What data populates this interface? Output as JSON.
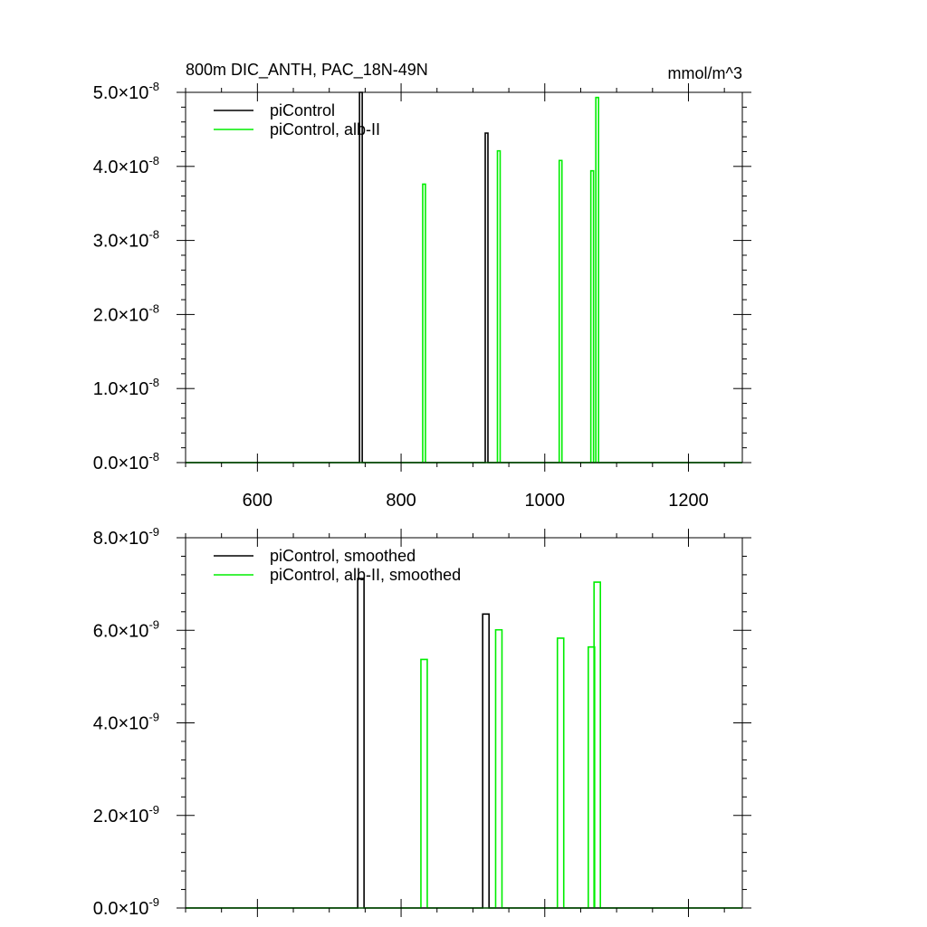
{
  "title": "800m DIC_ANTH, PAC_18N-49N",
  "units": "mmol/m^3",
  "chart_data": [
    {
      "type": "line",
      "title": "800m DIC_ANTH, PAC_18N-49N",
      "units_label": "mmol/m^3",
      "xlim": [
        500,
        1275
      ],
      "ylim": [
        0,
        5e-08
      ],
      "xticks": [
        600,
        800,
        1000,
        1200
      ],
      "xtick_labels": [
        "600",
        "800",
        "1000",
        "1200"
      ],
      "show_xtick_labels": true,
      "yticks": [
        0,
        1e-08,
        2e-08,
        3e-08,
        4e-08,
        5e-08
      ],
      "ytick_mantissas": [
        "0.0",
        "1.0",
        "2.0",
        "3.0",
        "4.0",
        "5.0"
      ],
      "ytick_exponent": "-8",
      "grid": false,
      "legend_position": "top-left",
      "series": [
        {
          "name": "piControl",
          "color": "#000000",
          "spikes": [
            [
              744,
              5e-08
            ],
            [
              919,
              4.45e-08
            ]
          ]
        },
        {
          "name": "piControl, alb-II",
          "color": "#00ee00",
          "spikes": [
            [
              832,
              3.76e-08
            ],
            [
              936,
              4.21e-08
            ],
            [
              1022,
              4.08e-08
            ],
            [
              1066,
              3.94e-08
            ],
            [
              1073,
              4.93e-08
            ]
          ]
        }
      ]
    },
    {
      "type": "line",
      "title": "",
      "xlim": [
        500,
        1275
      ],
      "ylim": [
        0,
        8e-09
      ],
      "xticks": [
        600,
        800,
        1000,
        1200
      ],
      "xtick_labels": [],
      "show_xtick_labels": false,
      "yticks": [
        0,
        2e-09,
        4e-09,
        6e-09,
        8e-09
      ],
      "ytick_mantissas": [
        "0.0",
        "2.0",
        "4.0",
        "6.0",
        "8.0"
      ],
      "ytick_exponent": "-9",
      "grid": false,
      "legend_position": "top-left",
      "series": [
        {
          "name": "piControl, smoothed",
          "color": "#000000",
          "spikes": [
            [
              744,
              7.12e-09
            ],
            [
              918,
              6.35e-09
            ]
          ]
        },
        {
          "name": "piControl, alb-II, smoothed",
          "color": "#00ee00",
          "spikes": [
            [
              832,
              5.37e-09
            ],
            [
              936,
              6.01e-09
            ],
            [
              1022,
              5.83e-09
            ],
            [
              1065,
              5.64e-09
            ],
            [
              1073,
              7.04e-09
            ]
          ]
        }
      ]
    }
  ]
}
